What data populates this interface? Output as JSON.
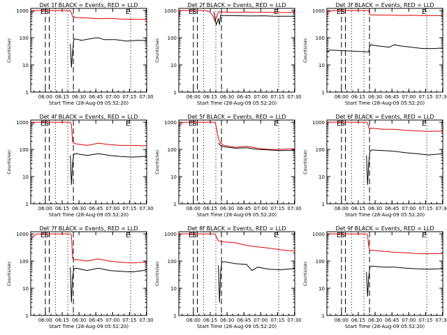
{
  "figure": {
    "colors": {
      "events": "#000000",
      "lld": "#dd0000",
      "axis": "#000000"
    },
    "xlabel": "Start Time (28-Aug-09 05:52:20)",
    "ylabel": "Counts/sec",
    "x_ticklabels": [
      "06:00",
      "06:15",
      "06:30",
      "06:45",
      "07:00",
      "07:15",
      "07:30"
    ],
    "y_ticklabels": [
      "1",
      "10",
      "100",
      "1000"
    ],
    "x_range_minutes": [
      -5.3,
      98
    ],
    "y_range": [
      1,
      1200
    ],
    "y_scale": "log",
    "markers": [
      {
        "label": "E",
        "minute": 7.7,
        "style": "long-dash"
      },
      {
        "label": "S",
        "minute": 11.2,
        "style": "long-dash"
      },
      {
        "label": "",
        "minute": 16.7,
        "style": "dotted"
      },
      {
        "label": "",
        "minute": 27.7,
        "style": "dotted"
      },
      {
        "label": "",
        "minute": 32.7,
        "style": "long-dash"
      },
      {
        "label": "E",
        "minute": 83.7,
        "style": "dotted"
      }
    ]
  },
  "chart_data": [
    {
      "type": "line",
      "title": "Det 1f BLACK = Events, RED = LLD",
      "series": [
        {
          "name": "LLD",
          "key": "lld",
          "x": [
            -5,
            -3,
            -1,
            0,
            1,
            2,
            30,
            31,
            32,
            35,
            45,
            55,
            65,
            75,
            85,
            95,
            98
          ],
          "y": [
            800,
            900,
            1000,
            1000,
            1000,
            1000,
            1000,
            800,
            620,
            550,
            530,
            500,
            520,
            490,
            480,
            470,
            470
          ]
        },
        {
          "name": "Events",
          "key": "events",
          "x": [
            30,
            31,
            32,
            33,
            34,
            40,
            50,
            55,
            60,
            70,
            80,
            90,
            98
          ],
          "y": [
            60,
            8,
            30,
            85,
            90,
            80,
            95,
            100,
            85,
            85,
            75,
            80,
            78
          ]
        }
      ]
    },
    {
      "type": "line",
      "title": "Det 2f BLACK = Events, RED = LLD",
      "series": [
        {
          "name": "LLD",
          "key": "lld",
          "x": [
            -5,
            -4,
            -3,
            -2,
            0,
            10,
            18,
            22,
            25,
            27,
            30,
            35,
            45,
            55,
            65,
            75,
            85,
            95,
            98
          ],
          "y": [
            600,
            1000,
            1000,
            1000,
            1000,
            1000,
            1000,
            900,
            650,
            400,
            900,
            880,
            860,
            880,
            850,
            860,
            840,
            850,
            850
          ]
        },
        {
          "name": "Events",
          "key": "events",
          "x": [
            26,
            27,
            28,
            30,
            31,
            32,
            33,
            40,
            50,
            60,
            70,
            80,
            90,
            98
          ],
          "y": [
            900,
            500,
            300,
            500,
            300,
            700,
            650,
            650,
            640,
            630,
            640,
            620,
            620,
            620
          ]
        }
      ]
    },
    {
      "type": "line",
      "title": "Det 3f BLACK = Events, RED = LLD",
      "series": [
        {
          "name": "LLD",
          "key": "lld",
          "x": [
            -5,
            -4,
            0,
            10,
            30,
            32,
            33,
            40,
            50,
            60,
            70,
            80,
            90,
            98
          ],
          "y": [
            700,
            900,
            1000,
            1000,
            1000,
            1000,
            700,
            680,
            680,
            660,
            670,
            650,
            650,
            650
          ]
        },
        {
          "name": "Events",
          "key": "events",
          "x": [
            -5,
            -4,
            -3,
            -2,
            32,
            33,
            34,
            40,
            50,
            55,
            60,
            70,
            80,
            90,
            98
          ],
          "y": [
            35,
            30,
            35,
            35,
            30,
            50,
            55,
            50,
            45,
            55,
            50,
            45,
            40,
            40,
            42
          ]
        }
      ]
    },
    {
      "type": "line",
      "title": "Det 4f BLACK = Events, RED = LLD",
      "series": [
        {
          "name": "LLD",
          "key": "lld",
          "x": [
            -5,
            -3,
            -1,
            0,
            30,
            31,
            32,
            33,
            35,
            45,
            55,
            65,
            75,
            85,
            95,
            98
          ],
          "y": [
            700,
            900,
            1000,
            1000,
            1000,
            800,
            200,
            170,
            160,
            140,
            170,
            150,
            140,
            140,
            135,
            140
          ]
        },
        {
          "name": "Events",
          "key": "events",
          "x": [
            30,
            31,
            32,
            33,
            35,
            45,
            55,
            65,
            75,
            85,
            95,
            98
          ],
          "y": [
            60,
            5,
            30,
            65,
            70,
            60,
            70,
            60,
            55,
            52,
            55,
            55
          ]
        }
      ]
    },
    {
      "type": "line",
      "title": "Det 5f BLACK = Events, RED = LLD",
      "series": [
        {
          "name": "LLD",
          "key": "lld",
          "x": [
            -5,
            -3,
            -1,
            0,
            10,
            20,
            27,
            28,
            30,
            32,
            35,
            45,
            55,
            65,
            75,
            85,
            95,
            98
          ],
          "y": [
            700,
            900,
            1000,
            1000,
            1000,
            1000,
            1000,
            700,
            250,
            170,
            140,
            120,
            130,
            110,
            100,
            100,
            105,
            105
          ]
        },
        {
          "name": "Events",
          "key": "events",
          "x": [
            30,
            32,
            35,
            45,
            55,
            65,
            75,
            85,
            95,
            98
          ],
          "y": [
            170,
            140,
            125,
            110,
            115,
            100,
            95,
            90,
            92,
            95
          ]
        }
      ]
    },
    {
      "type": "line",
      "title": "Det 6f BLACK = Events, RED = LLD",
      "series": [
        {
          "name": "LLD",
          "key": "lld",
          "x": [
            -5,
            -4,
            0,
            10,
            30,
            31,
            32,
            33,
            35,
            45,
            55,
            65,
            75,
            85,
            95,
            98
          ],
          "y": [
            800,
            1000,
            1000,
            1000,
            1000,
            900,
            650,
            580,
            600,
            550,
            550,
            500,
            480,
            460,
            470,
            470
          ]
        },
        {
          "name": "Events",
          "key": "events",
          "x": [
            30,
            31,
            32,
            33,
            35,
            45,
            55,
            65,
            75,
            85,
            95,
            98
          ],
          "y": [
            60,
            5,
            30,
            85,
            95,
            90,
            85,
            75,
            70,
            62,
            68,
            70
          ]
        }
      ]
    },
    {
      "type": "line",
      "title": "Det 7f BLACK = Events, RED = LLD",
      "series": [
        {
          "name": "LLD",
          "key": "lld",
          "x": [
            -5,
            -3,
            0,
            10,
            30,
            31,
            32,
            33,
            35,
            45,
            55,
            65,
            75,
            85,
            95,
            98
          ],
          "y": [
            600,
            800,
            1000,
            1000,
            1000,
            900,
            130,
            110,
            115,
            100,
            120,
            100,
            90,
            85,
            90,
            95
          ]
        },
        {
          "name": "Events",
          "key": "events",
          "x": [
            30,
            31,
            32,
            33,
            35,
            45,
            55,
            65,
            75,
            85,
            95,
            98
          ],
          "y": [
            60,
            3,
            25,
            50,
            55,
            45,
            55,
            45,
            42,
            40,
            45,
            48
          ]
        }
      ]
    },
    {
      "type": "line",
      "title": "Det 8f BLACK = Events, RED = LLD",
      "series": [
        {
          "name": "LLD",
          "key": "lld",
          "x": [
            -5,
            -3,
            0,
            10,
            20,
            27,
            28,
            30,
            35,
            45,
            55,
            65,
            75,
            85,
            95,
            98
          ],
          "y": [
            800,
            1000,
            1000,
            1000,
            1000,
            1000,
            800,
            550,
            500,
            470,
            380,
            330,
            300,
            260,
            240,
            240
          ]
        },
        {
          "name": "Events",
          "key": "events",
          "x": [
            30,
            31,
            32,
            33,
            35,
            45,
            55,
            60,
            65,
            75,
            85,
            95,
            98
          ],
          "y": [
            70,
            3,
            40,
            90,
            95,
            80,
            75,
            45,
            60,
            50,
            48,
            52,
            55
          ]
        }
      ]
    },
    {
      "type": "line",
      "title": "Det 9f BLACK = Events, RED = LLD",
      "series": [
        {
          "name": "LLD",
          "key": "lld",
          "x": [
            -5,
            -3,
            0,
            10,
            30,
            31,
            32,
            33,
            35,
            45,
            55,
            65,
            75,
            85,
            95,
            98
          ],
          "y": [
            800,
            1000,
            1000,
            1000,
            1000,
            900,
            350,
            240,
            250,
            230,
            210,
            200,
            190,
            185,
            190,
            190
          ]
        },
        {
          "name": "Events",
          "key": "events",
          "x": [
            30,
            31,
            32,
            33,
            35,
            45,
            55,
            65,
            75,
            85,
            95,
            98
          ],
          "y": [
            40,
            5,
            25,
            60,
            65,
            60,
            60,
            55,
            52,
            50,
            52,
            55
          ]
        }
      ]
    }
  ]
}
